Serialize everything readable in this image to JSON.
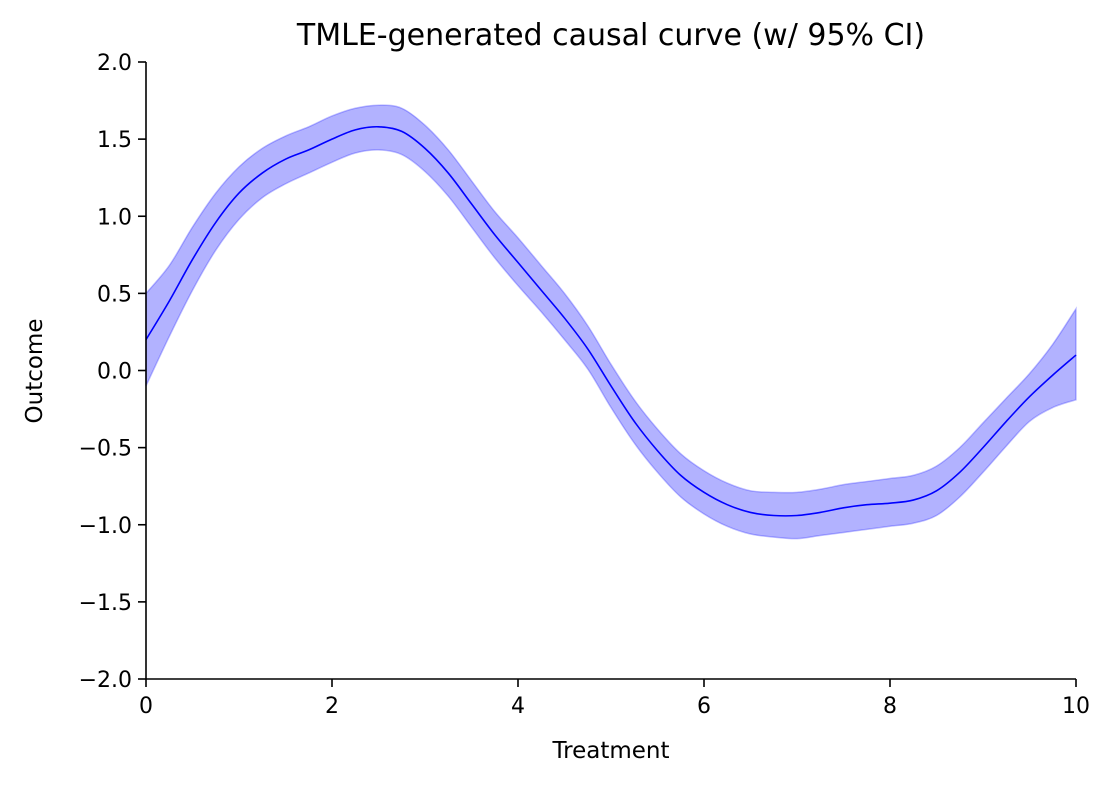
{
  "chart_data": {
    "type": "line",
    "title": "TMLE-generated causal curve (w/ 95% CI)",
    "xlabel": "Treatment",
    "ylabel": "Outcome",
    "xlim": [
      0,
      10
    ],
    "ylim": [
      -2.0,
      2.0
    ],
    "xticks": [
      0,
      2,
      4,
      6,
      8,
      10
    ],
    "yticks": [
      -2.0,
      -1.5,
      -1.0,
      -0.5,
      0.0,
      0.5,
      1.0,
      1.5,
      2.0
    ],
    "ytick_labels": [
      "−2.0",
      "−1.5",
      "−1.0",
      "−0.5",
      "0.0",
      "0.5",
      "1.0",
      "1.5",
      "2.0"
    ],
    "grid": false,
    "legend": "none",
    "series": [
      {
        "color": "#0000ff",
        "band_color": "#0000ff",
        "x": [
          0.0,
          0.25,
          0.5,
          0.75,
          1.0,
          1.25,
          1.5,
          1.75,
          2.0,
          2.25,
          2.5,
          2.75,
          3.0,
          3.25,
          3.5,
          3.75,
          4.0,
          4.25,
          4.5,
          4.75,
          5.0,
          5.25,
          5.5,
          5.75,
          6.0,
          6.25,
          6.5,
          6.75,
          7.0,
          7.25,
          7.5,
          7.75,
          8.0,
          8.25,
          8.5,
          8.75,
          9.0,
          9.25,
          9.5,
          9.75,
          10.0
        ],
        "y": [
          0.2,
          0.45,
          0.72,
          0.96,
          1.15,
          1.28,
          1.37,
          1.43,
          1.5,
          1.56,
          1.58,
          1.55,
          1.44,
          1.28,
          1.08,
          0.88,
          0.7,
          0.52,
          0.34,
          0.14,
          -0.1,
          -0.33,
          -0.52,
          -0.68,
          -0.79,
          -0.87,
          -0.92,
          -0.94,
          -0.94,
          -0.92,
          -0.89,
          -0.87,
          -0.86,
          -0.84,
          -0.78,
          -0.66,
          -0.5,
          -0.33,
          -0.17,
          -0.03,
          0.1
        ],
        "lower": [
          -0.1,
          0.22,
          0.52,
          0.78,
          0.98,
          1.12,
          1.21,
          1.28,
          1.35,
          1.41,
          1.43,
          1.4,
          1.29,
          1.13,
          0.93,
          0.73,
          0.55,
          0.38,
          0.2,
          0.01,
          -0.24,
          -0.47,
          -0.66,
          -0.82,
          -0.93,
          -1.01,
          -1.06,
          -1.08,
          -1.09,
          -1.07,
          -1.05,
          -1.03,
          -1.01,
          -0.99,
          -0.94,
          -0.82,
          -0.66,
          -0.49,
          -0.33,
          -0.24,
          -0.19
        ],
        "upper": [
          0.5,
          0.68,
          0.93,
          1.15,
          1.32,
          1.44,
          1.52,
          1.58,
          1.65,
          1.7,
          1.72,
          1.7,
          1.59,
          1.43,
          1.23,
          1.03,
          0.86,
          0.68,
          0.5,
          0.29,
          0.04,
          -0.19,
          -0.38,
          -0.54,
          -0.65,
          -0.73,
          -0.78,
          -0.79,
          -0.79,
          -0.77,
          -0.74,
          -0.72,
          -0.7,
          -0.68,
          -0.62,
          -0.5,
          -0.34,
          -0.18,
          -0.02,
          0.17,
          0.4
        ]
      }
    ]
  }
}
